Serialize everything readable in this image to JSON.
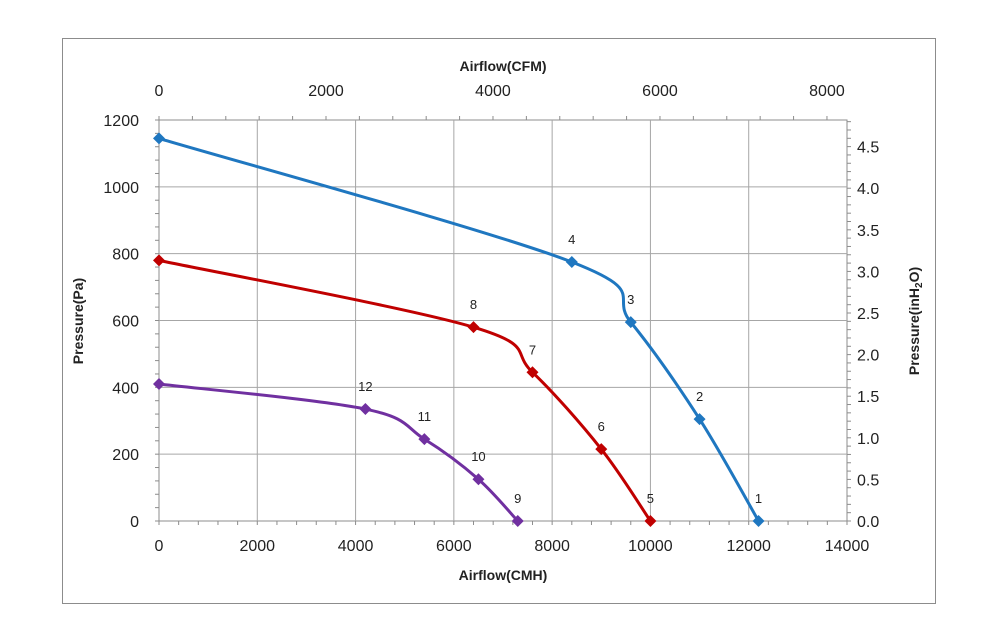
{
  "chart_data": {
    "type": "line",
    "xlabel": "Airflow(CMH)",
    "x2label": "Airflow(CFM)",
    "ylabel": "Pressure(Pa)",
    "y2label_parts": [
      "Pressure(inH",
      "2",
      "O)"
    ],
    "xlim": [
      0,
      14000
    ],
    "x2lim": [
      0,
      8240
    ],
    "ylim": [
      0,
      1200
    ],
    "y2lim": [
      0,
      4.82
    ],
    "x_ticks": [
      "0",
      "2000",
      "4000",
      "6000",
      "8000",
      "10000",
      "12000",
      "14000"
    ],
    "x2_ticks": [
      "0",
      "2000",
      "4000",
      "6000",
      "8000"
    ],
    "y_ticks": [
      "0",
      "200",
      "400",
      "600",
      "800",
      "1000",
      "1200"
    ],
    "y2_ticks": [
      "0.0",
      "0.5",
      "1.0",
      "1.5",
      "2.0",
      "2.5",
      "3.0",
      "3.5",
      "4.0",
      "4.5"
    ],
    "grid": true,
    "series": [
      {
        "color": "#1f77c0",
        "x": [
          0,
          8400,
          9600,
          11000,
          12200
        ],
        "y": [
          1145,
          775,
          595,
          305,
          0
        ],
        "labels": [
          "",
          "4",
          "3",
          "2",
          "1"
        ]
      },
      {
        "color": "#c00000",
        "x": [
          0,
          6400,
          7600,
          9000,
          10000
        ],
        "y": [
          780,
          580,
          445,
          215,
          0
        ],
        "labels": [
          "",
          "8",
          "7",
          "6",
          "5"
        ]
      },
      {
        "color": "#7030a0",
        "x": [
          0,
          4200,
          5400,
          6500,
          7300
        ],
        "y": [
          410,
          335,
          245,
          125,
          0
        ],
        "labels": [
          "",
          "12",
          "11",
          "10",
          "9"
        ]
      }
    ]
  }
}
